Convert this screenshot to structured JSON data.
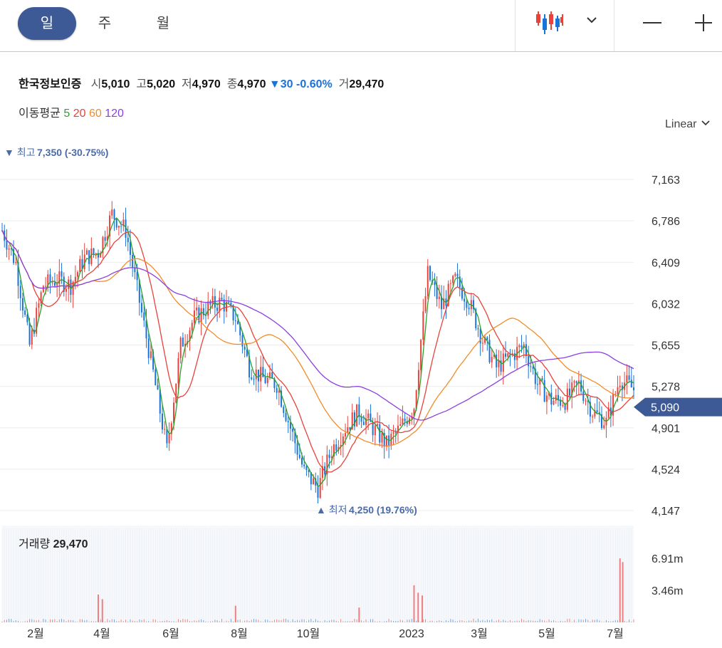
{
  "tabs": [
    {
      "label": "일",
      "active": true
    },
    {
      "label": "주",
      "active": false
    },
    {
      "label": "월",
      "active": false
    }
  ],
  "toolbar": {
    "chart_type_icon": "candlestick-icon",
    "dropdown_icon": "chevron-down-icon",
    "zoom_out_icon": "minus-icon",
    "zoom_in_icon": "plus-icon"
  },
  "quote": {
    "name": "한국정보인증",
    "open_label": "시",
    "open": "5,010",
    "high_label": "고",
    "high": "5,020",
    "low_label": "저",
    "low": "4,970",
    "close_label": "종",
    "close": "4,970",
    "change_arrow": "▼",
    "change": "30",
    "change_pct": "-0.60%",
    "volume_label": "거",
    "volume": "29,470"
  },
  "moving_average": {
    "label": "이동평균",
    "periods": [
      {
        "value": "5",
        "color": "#2ca02c"
      },
      {
        "value": "20",
        "color": "#e8423b"
      },
      {
        "value": "60",
        "color": "#f28c28"
      },
      {
        "value": "120",
        "color": "#8b3fe0"
      }
    ]
  },
  "scale_mode": "Linear",
  "colors": {
    "up": "#e8423b",
    "down": "#1a73d9",
    "accent": "#3d5a96",
    "marker": "#4a6aa8"
  },
  "chart_data": {
    "type": "candlestick",
    "price_axis": {
      "ticks": [
        "7,163",
        "6,786",
        "6,409",
        "6,032",
        "5,655",
        "5,278",
        "4,901",
        "4,524",
        "4,147"
      ]
    },
    "current_price": "5,090",
    "high_marker": {
      "label": "최고",
      "value": "7,350",
      "pct": "(-30.75%)"
    },
    "low_marker": {
      "label": "최저",
      "value": "4,250",
      "pct": "(19.76%)"
    },
    "time_axis": [
      "2월",
      "4월",
      "6월",
      "8월",
      "10월",
      "2023",
      "3월",
      "5월",
      "7월"
    ],
    "volume_panel": {
      "label": "거래량",
      "value": "29,470",
      "ticks": [
        "6.91m",
        "3.46m"
      ]
    },
    "ohlc_path": [
      [
        0,
        6700
      ],
      [
        2,
        6400
      ],
      [
        4,
        5650
      ],
      [
        6,
        6200
      ],
      [
        8,
        6250
      ],
      [
        10,
        6200
      ],
      [
        12,
        6450
      ],
      [
        14,
        6500
      ],
      [
        16,
        6850
      ],
      [
        18,
        6700
      ],
      [
        20,
        6050
      ],
      [
        22,
        5400
      ],
      [
        24,
        4700
      ],
      [
        26,
        5650
      ],
      [
        28,
        5900
      ],
      [
        30,
        6000
      ],
      [
        32,
        6050
      ],
      [
        34,
        5900
      ],
      [
        36,
        5450
      ],
      [
        38,
        5350
      ],
      [
        40,
        5300
      ],
      [
        42,
        4900
      ],
      [
        44,
        4500
      ],
      [
        46,
        4350
      ],
      [
        48,
        4700
      ],
      [
        50,
        4900
      ],
      [
        52,
        5050
      ],
      [
        54,
        4900
      ],
      [
        56,
        4750
      ],
      [
        58,
        4900
      ],
      [
        60,
        5100
      ],
      [
        62,
        6300
      ],
      [
        64,
        6000
      ],
      [
        66,
        6250
      ],
      [
        68,
        6050
      ],
      [
        70,
        5700
      ],
      [
        72,
        5450
      ],
      [
        74,
        5550
      ],
      [
        76,
        5650
      ],
      [
        78,
        5300
      ],
      [
        80,
        5150
      ],
      [
        82,
        5150
      ],
      [
        84,
        5300
      ],
      [
        86,
        5050
      ],
      [
        88,
        4950
      ],
      [
        90,
        5350
      ],
      [
        92,
        5250
      ]
    ],
    "volume_spikes": [
      [
        14,
        3
      ],
      [
        14.6,
        2.5
      ],
      [
        34,
        1.8
      ],
      [
        52,
        1.6
      ],
      [
        60,
        4
      ],
      [
        60.6,
        3.2
      ],
      [
        61.2,
        2.9
      ],
      [
        90,
        6.9
      ],
      [
        90.4,
        6.5
      ]
    ]
  }
}
